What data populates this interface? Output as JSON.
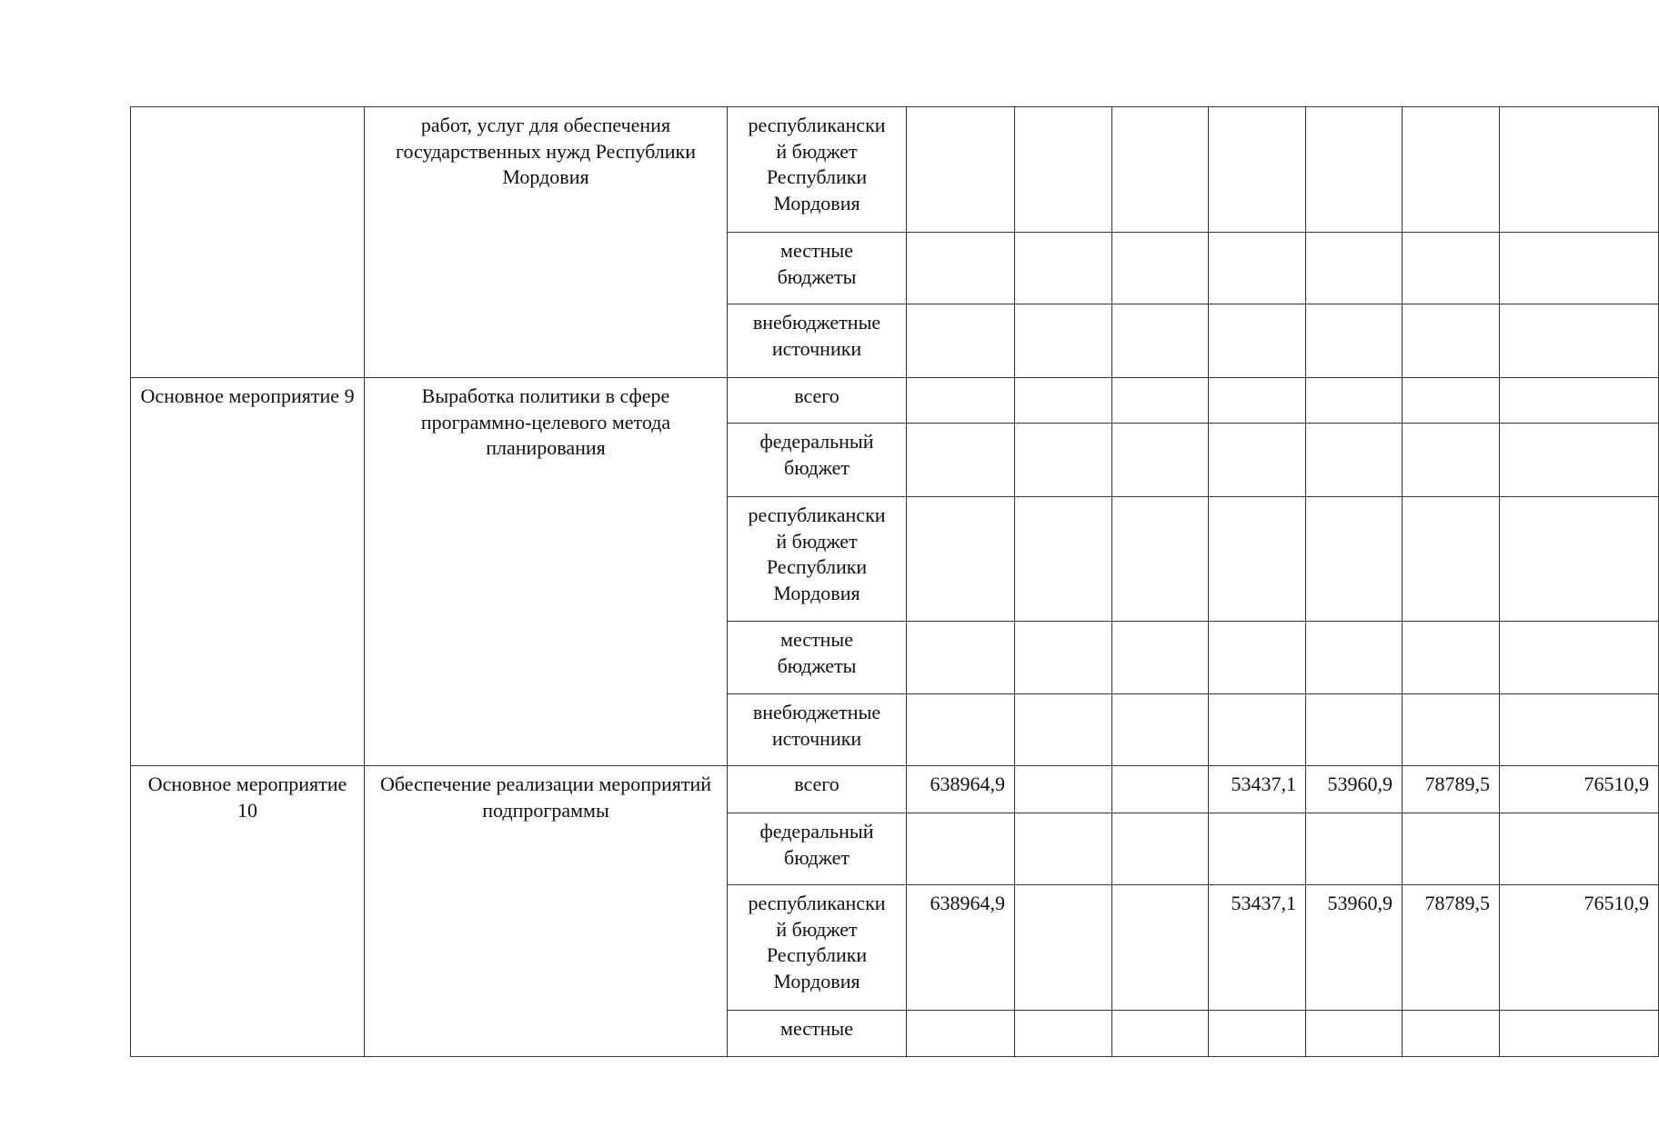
{
  "blocks": [
    {
      "event": "",
      "name": "работ, услуг для обеспечения государственных нужд Республики Мордовия",
      "rows": [
        {
          "source": "республикански\nй бюджет\nРеспублики\nМордовия",
          "values": [
            "",
            "",
            "",
            "",
            "",
            "",
            ""
          ]
        },
        {
          "source": "местные\nбюджеты",
          "values": [
            "",
            "",
            "",
            "",
            "",
            "",
            ""
          ]
        },
        {
          "source": "внебюджетные\nисточники",
          "values": [
            "",
            "",
            "",
            "",
            "",
            "",
            ""
          ]
        }
      ]
    },
    {
      "event": "Основное мероприятие 9",
      "name": "Выработка политики в сфере программно-целевого метода планирования",
      "rows": [
        {
          "source": "всего",
          "values": [
            "",
            "",
            "",
            "",
            "",
            "",
            ""
          ]
        },
        {
          "source": "федеральный\nбюджет",
          "values": [
            "",
            "",
            "",
            "",
            "",
            "",
            ""
          ]
        },
        {
          "source": "республикански\nй бюджет\nРеспублики\nМордовия",
          "values": [
            "",
            "",
            "",
            "",
            "",
            "",
            ""
          ]
        },
        {
          "source": "местные\nбюджеты",
          "values": [
            "",
            "",
            "",
            "",
            "",
            "",
            ""
          ]
        },
        {
          "source": "внебюджетные\nисточники",
          "values": [
            "",
            "",
            "",
            "",
            "",
            "",
            ""
          ]
        }
      ]
    },
    {
      "event": "Основное мероприятие 10",
      "name": "Обеспечение реализации мероприятий подпрограммы",
      "rows": [
        {
          "source": "всего",
          "values": [
            "638964,9",
            "",
            "",
            "53437,1",
            "53960,9",
            "78789,5",
            "76510,9"
          ]
        },
        {
          "source": "федеральный\nбюджет",
          "values": [
            "",
            "",
            "",
            "",
            "",
            "",
            ""
          ]
        },
        {
          "source": "республикански\nй бюджет\nРеспублики\nМордовия",
          "values": [
            "638964,9",
            "",
            "",
            "53437,1",
            "53960,9",
            "78789,5",
            "76510,9"
          ]
        },
        {
          "source": "местные",
          "values": [
            "",
            "",
            "",
            "",
            "",
            "",
            ""
          ]
        }
      ]
    }
  ]
}
